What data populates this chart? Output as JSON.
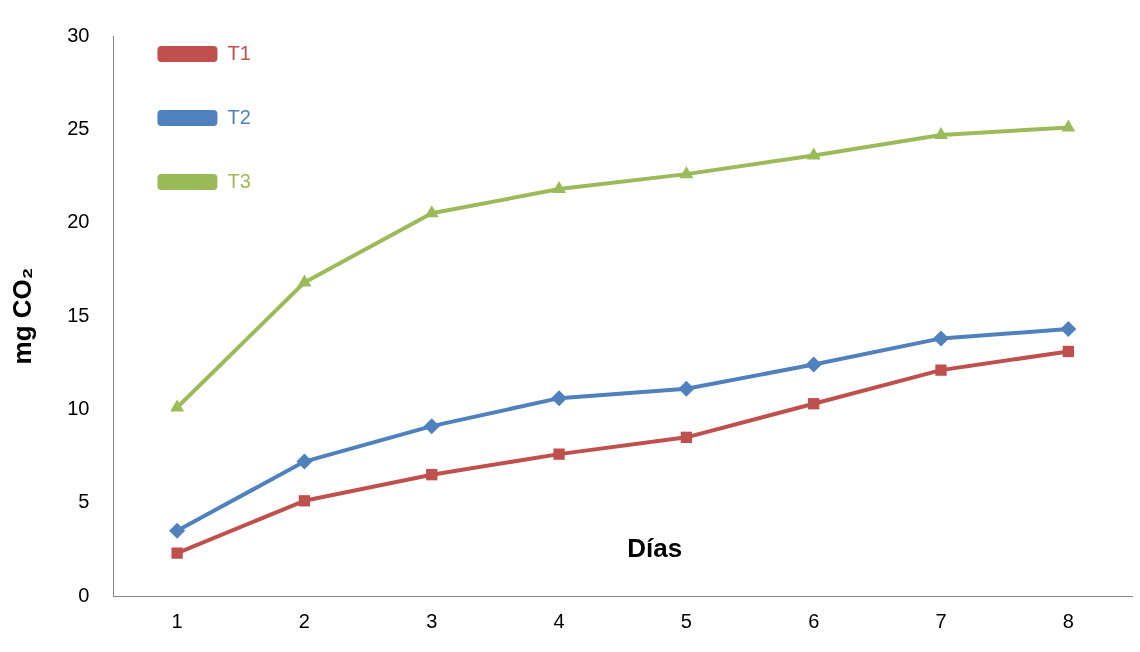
{
  "chart_data": {
    "type": "line",
    "xlabel": "Días",
    "ylabel": "mg CO₂",
    "categories": [
      "1",
      "2",
      "3",
      "4",
      "5",
      "6",
      "7",
      "8"
    ],
    "series": [
      {
        "name": "T1",
        "color": "#c0504d",
        "marker": "square",
        "values": [
          2.3,
          5.1,
          6.5,
          7.6,
          8.5,
          10.3,
          12.1,
          13.1
        ]
      },
      {
        "name": "T2",
        "color": "#4f81bd",
        "marker": "diamond",
        "values": [
          3.5,
          7.2,
          9.1,
          10.6,
          11.1,
          12.4,
          13.8,
          14.3
        ]
      },
      {
        "name": "T3",
        "color": "#9bbb59",
        "marker": "triangle",
        "values": [
          10.1,
          16.8,
          20.5,
          21.8,
          22.6,
          23.6,
          24.7,
          25.1
        ]
      }
    ],
    "ylim": [
      0,
      30
    ],
    "yticks": [
      0,
      5,
      10,
      15,
      20,
      25,
      30
    ],
    "grid": false,
    "legend": "top left",
    "line_style": "solid"
  }
}
